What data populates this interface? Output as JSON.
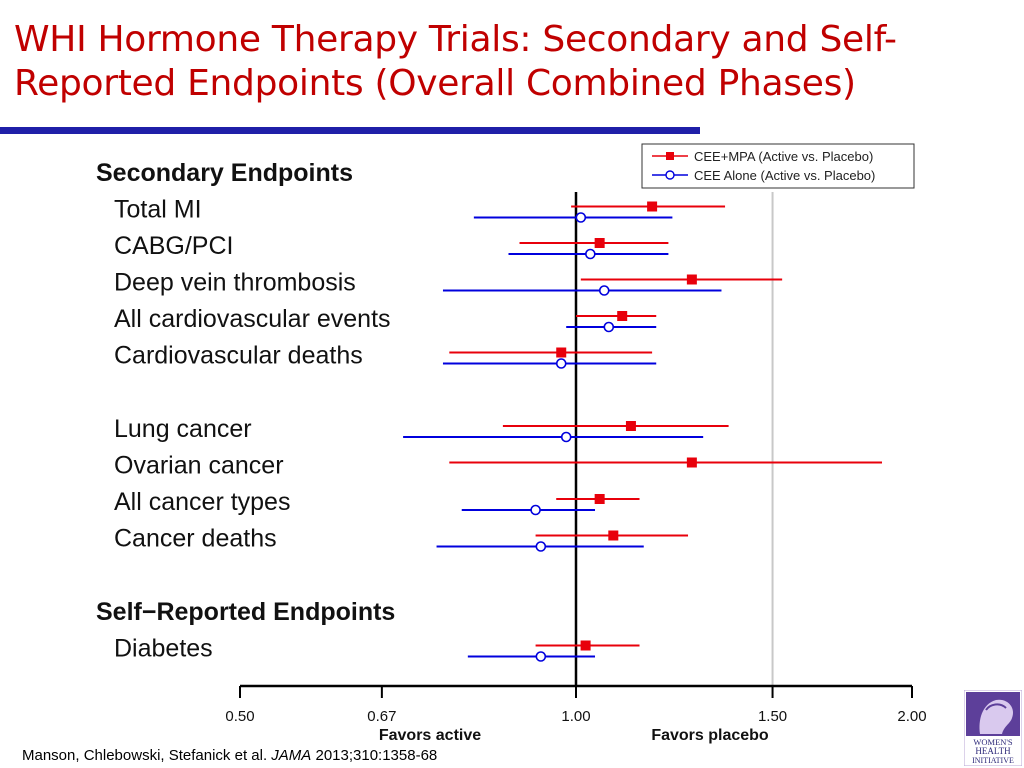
{
  "title": "WHI Hormone Therapy Trials: Secondary and Self-Reported Endpoints (Overall Combined Phases)",
  "citation": {
    "authors": "Manson, Chlebowski, Stefanick  et al.",
    "journal": "JAMA",
    "ref": "2013;310:1358-68"
  },
  "logo": {
    "line1": "WOMEN'S",
    "line2": "HEALTH",
    "line3": "INITIATIVE"
  },
  "colors": {
    "cee_mpa": "#e8000b",
    "cee_alone": "#0000dd",
    "title": "#c00000",
    "rule": "#1f1fa8"
  },
  "chart_data": {
    "type": "forest",
    "x_scale": "log",
    "xlim": [
      0.5,
      2.0
    ],
    "x_ticks": [
      0.5,
      0.67,
      1.0,
      1.5,
      2.0
    ],
    "x_tick_labels": [
      "0.50",
      "0.67",
      "1.00",
      "1.50",
      "2.00"
    ],
    "reference_line": 1.0,
    "gray_line": 1.5,
    "favors_left": "Favors active",
    "favors_right": "Favors placebo",
    "legend": [
      {
        "series": "cee_mpa",
        "label": "CEE+MPA (Active vs. Placebo)",
        "marker": "filled-square"
      },
      {
        "series": "cee_alone",
        "label": "CEE Alone (Active vs. Placebo)",
        "marker": "open-circle"
      }
    ],
    "legend_position": "top-right",
    "rows": [
      {
        "kind": "header",
        "label": "Secondary Endpoints"
      },
      {
        "kind": "item",
        "label": "Total MI",
        "cee_mpa": {
          "hr": 1.17,
          "lo": 0.99,
          "hi": 1.36
        },
        "cee_alone": {
          "hr": 1.01,
          "lo": 0.81,
          "hi": 1.22
        }
      },
      {
        "kind": "item",
        "label": "CABG/PCI",
        "cee_mpa": {
          "hr": 1.05,
          "lo": 0.89,
          "hi": 1.21
        },
        "cee_alone": {
          "hr": 1.03,
          "lo": 0.87,
          "hi": 1.21
        }
      },
      {
        "kind": "item",
        "label": "Deep vein thrombosis",
        "cee_mpa": {
          "hr": 1.27,
          "lo": 1.01,
          "hi": 1.53
        },
        "cee_alone": {
          "hr": 1.06,
          "lo": 0.76,
          "hi": 1.35
        }
      },
      {
        "kind": "item",
        "label": "All cardiovascular events",
        "cee_mpa": {
          "hr": 1.1,
          "lo": 1.0,
          "hi": 1.18
        },
        "cee_alone": {
          "hr": 1.07,
          "lo": 0.98,
          "hi": 1.18
        }
      },
      {
        "kind": "item",
        "label": "Cardiovascular deaths",
        "cee_mpa": {
          "hr": 0.97,
          "lo": 0.77,
          "hi": 1.17
        },
        "cee_alone": {
          "hr": 0.97,
          "lo": 0.76,
          "hi": 1.18
        }
      },
      {
        "kind": "gap"
      },
      {
        "kind": "item",
        "label": "Lung cancer",
        "cee_mpa": {
          "hr": 1.12,
          "lo": 0.86,
          "hi": 1.37
        },
        "cee_alone": {
          "hr": 0.98,
          "lo": 0.7,
          "hi": 1.3
        }
      },
      {
        "kind": "item",
        "label": "Ovarian cancer",
        "cee_mpa": {
          "hr": 1.27,
          "lo": 0.77,
          "hi": 1.88
        }
      },
      {
        "kind": "item",
        "label": "All cancer types",
        "cee_mpa": {
          "hr": 1.05,
          "lo": 0.96,
          "hi": 1.14
        },
        "cee_alone": {
          "hr": 0.92,
          "lo": 0.79,
          "hi": 1.04
        }
      },
      {
        "kind": "item",
        "label": "Cancer deaths",
        "cee_mpa": {
          "hr": 1.08,
          "lo": 0.92,
          "hi": 1.26
        },
        "cee_alone": {
          "hr": 0.93,
          "lo": 0.75,
          "hi": 1.15
        }
      },
      {
        "kind": "gap"
      },
      {
        "kind": "header",
        "label": "Self−Reported Endpoints"
      },
      {
        "kind": "item",
        "label": "Diabetes",
        "cee_mpa": {
          "hr": 1.02,
          "lo": 0.92,
          "hi": 1.14
        },
        "cee_alone": {
          "hr": 0.93,
          "lo": 0.8,
          "hi": 1.04
        }
      }
    ]
  }
}
